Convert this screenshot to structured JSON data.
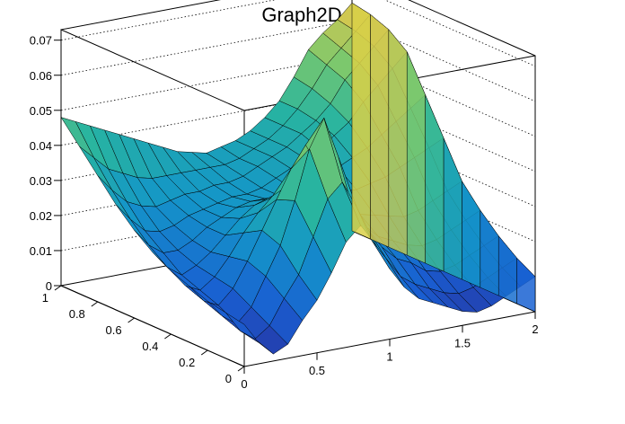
{
  "chart_data": {
    "type": "surface3d",
    "title": "Graph2D",
    "xlabel": "",
    "ylabel": "",
    "zlabel": "",
    "xlim": [
      0,
      2
    ],
    "ylim": [
      0,
      1
    ],
    "zlim": [
      0,
      0.073
    ],
    "x_ticks": [
      "0",
      "0.5",
      "1",
      "1.5",
      "2"
    ],
    "x_tick_values": [
      0,
      0.5,
      1,
      1.5,
      2
    ],
    "y_ticks": [
      "0",
      "0.2",
      "0.4",
      "0.6",
      "0.8",
      "1"
    ],
    "y_tick_values": [
      0,
      0.2,
      0.4,
      0.6,
      0.8,
      1
    ],
    "z_ticks": [
      "0",
      "0.01",
      "0.02",
      "0.03",
      "0.04",
      "0.05",
      "0.06",
      "0.07"
    ],
    "z_tick_values": [
      0,
      0.01,
      0.02,
      0.03,
      0.04,
      0.05,
      0.06,
      0.07
    ],
    "grid": "dotted back panels",
    "colormap": "viridis-like (blue to yellow)",
    "mesh_color": "#000000",
    "grid_x": [
      0,
      0.1,
      0.2,
      0.3,
      0.4,
      0.5,
      0.6,
      0.7,
      0.8,
      0.9,
      1.0,
      1.1,
      1.2,
      1.3,
      1.4,
      1.5,
      1.6,
      1.7,
      1.8,
      1.9,
      2.0
    ],
    "grid_y": [
      0,
      0.1,
      0.2,
      0.3,
      0.4,
      0.5,
      0.6,
      0.7,
      0.8,
      0.9,
      1.0
    ],
    "z": [
      [
        0.012,
        0.006,
        0.002,
        0.004,
        0.01,
        0.015,
        0.022,
        0.03,
        0.034,
        0.028,
        0.02,
        0.014,
        0.01,
        0.008,
        0.006,
        0.004,
        0.003,
        0.004,
        0.006,
        0.008,
        0.01
      ],
      [
        0.013,
        0.007,
        0.004,
        0.007,
        0.014,
        0.02,
        0.03,
        0.04,
        0.044,
        0.036,
        0.026,
        0.02,
        0.014,
        0.011,
        0.009,
        0.007,
        0.006,
        0.007,
        0.009,
        0.011,
        0.013
      ],
      [
        0.014,
        0.009,
        0.006,
        0.01,
        0.018,
        0.026,
        0.038,
        0.052,
        0.06,
        0.048,
        0.032,
        0.026,
        0.02,
        0.016,
        0.014,
        0.011,
        0.01,
        0.011,
        0.013,
        0.015,
        0.017
      ],
      [
        0.016,
        0.011,
        0.009,
        0.013,
        0.02,
        0.028,
        0.036,
        0.044,
        0.05,
        0.042,
        0.03,
        0.026,
        0.024,
        0.02,
        0.018,
        0.016,
        0.015,
        0.016,
        0.018,
        0.02,
        0.022
      ],
      [
        0.018,
        0.013,
        0.011,
        0.014,
        0.019,
        0.025,
        0.03,
        0.034,
        0.036,
        0.033,
        0.028,
        0.026,
        0.025,
        0.024,
        0.023,
        0.022,
        0.021,
        0.022,
        0.024,
        0.026,
        0.028
      ],
      [
        0.021,
        0.016,
        0.013,
        0.015,
        0.018,
        0.022,
        0.026,
        0.029,
        0.03,
        0.029,
        0.027,
        0.027,
        0.027,
        0.028,
        0.028,
        0.029,
        0.03,
        0.032,
        0.034,
        0.036,
        0.038
      ],
      [
        0.025,
        0.02,
        0.017,
        0.017,
        0.019,
        0.022,
        0.024,
        0.026,
        0.027,
        0.027,
        0.027,
        0.028,
        0.029,
        0.031,
        0.032,
        0.034,
        0.036,
        0.039,
        0.042,
        0.045,
        0.048
      ],
      [
        0.03,
        0.025,
        0.021,
        0.02,
        0.021,
        0.023,
        0.024,
        0.025,
        0.026,
        0.026,
        0.027,
        0.029,
        0.031,
        0.033,
        0.035,
        0.038,
        0.041,
        0.046,
        0.05,
        0.054,
        0.058
      ],
      [
        0.036,
        0.031,
        0.027,
        0.025,
        0.024,
        0.025,
        0.026,
        0.026,
        0.027,
        0.027,
        0.028,
        0.03,
        0.032,
        0.034,
        0.037,
        0.04,
        0.044,
        0.05,
        0.054,
        0.058,
        0.062
      ],
      [
        0.042,
        0.038,
        0.034,
        0.032,
        0.03,
        0.029,
        0.029,
        0.029,
        0.029,
        0.029,
        0.029,
        0.03,
        0.032,
        0.034,
        0.037,
        0.041,
        0.046,
        0.052,
        0.056,
        0.06,
        0.064
      ],
      [
        0.048,
        0.046,
        0.044,
        0.042,
        0.04,
        0.038,
        0.036,
        0.034,
        0.032,
        0.031,
        0.03,
        0.031,
        0.032,
        0.034,
        0.037,
        0.041,
        0.047,
        0.054,
        0.058,
        0.061,
        0.065
      ]
    ]
  }
}
